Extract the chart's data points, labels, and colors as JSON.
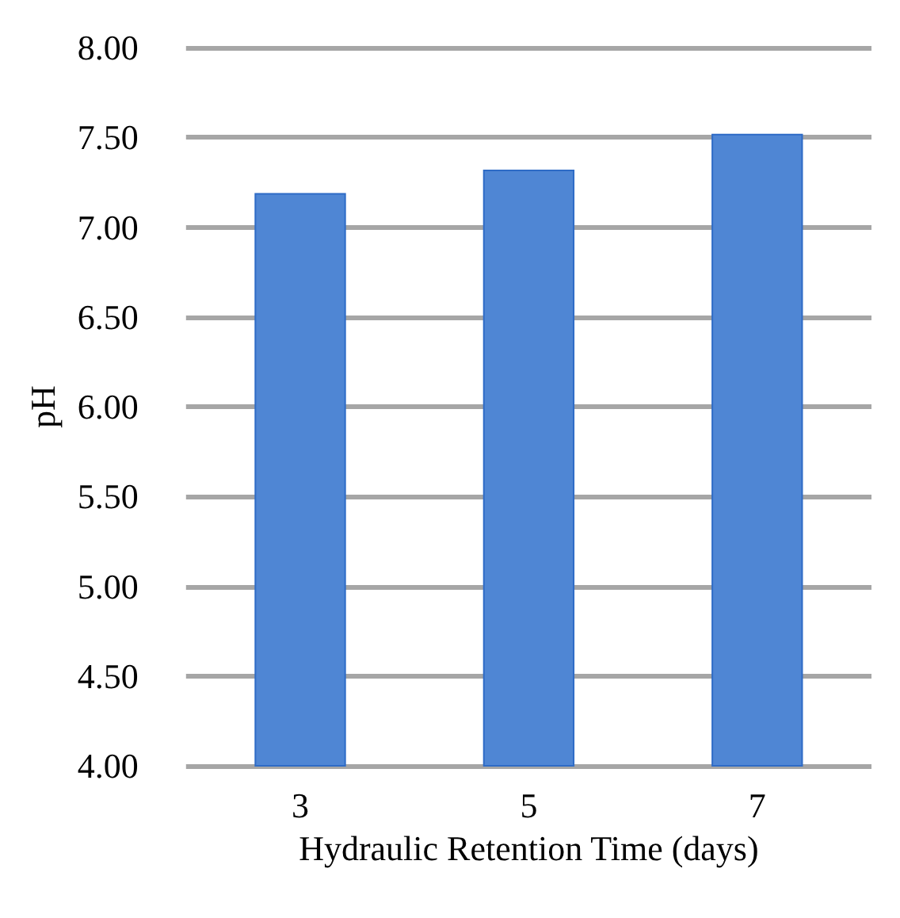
{
  "chart_data": {
    "type": "bar",
    "xlabel": "Hydraulic Retention Time (days)",
    "ylabel": "pH",
    "categories": [
      "3",
      "5",
      "7"
    ],
    "values": [
      7.19,
      7.32,
      7.52
    ],
    "color": "#4f86d4",
    "ylim": [
      4,
      8
    ],
    "yticks": [
      {
        "value": 4,
        "label": "4.00"
      },
      {
        "value": 4.5,
        "label": "4.50"
      },
      {
        "value": 5,
        "label": "5.00"
      },
      {
        "value": 5.5,
        "label": "5.50"
      },
      {
        "value": 6,
        "label": "6.00"
      },
      {
        "value": 6.5,
        "label": "6.50"
      },
      {
        "value": 7,
        "label": "7.00"
      },
      {
        "value": 7.5,
        "label": "7.50"
      },
      {
        "value": 8,
        "label": "8.00"
      }
    ],
    "grid": true
  }
}
